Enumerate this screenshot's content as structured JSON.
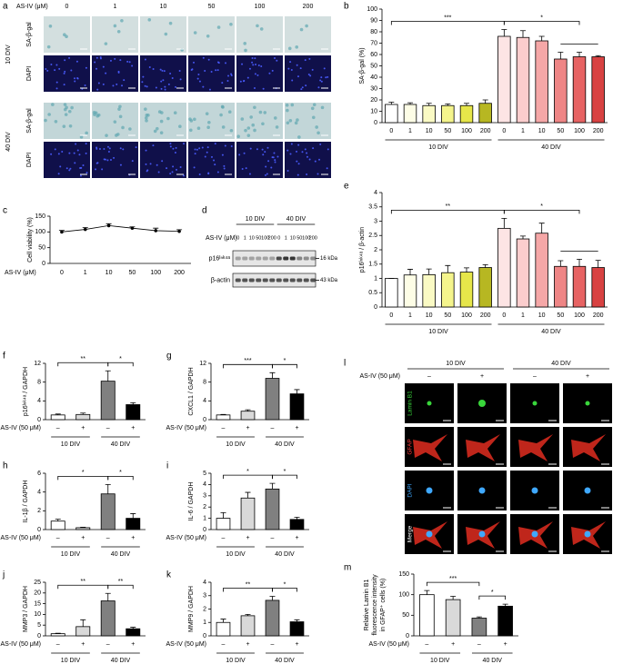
{
  "figure": {
    "a": {
      "letter": "a",
      "treatment": "AS-IV (μM)",
      "doses": [
        "0",
        "1",
        "10",
        "50",
        "100",
        "200"
      ],
      "groups": [
        "10 DIV",
        "40 DIV"
      ],
      "stains": [
        "SA-β-gal",
        "DAPI"
      ]
    },
    "d": {
      "letter": "d",
      "treatment": "AS-IV (μM)",
      "doses": [
        "0",
        "1",
        "10",
        "50",
        "100",
        "200"
      ],
      "groups": [
        "10 DIV",
        "40 DIV"
      ],
      "bands": [
        "p16ᴵⁿᵏ⁴ᵃ",
        "β-actin"
      ],
      "sizes": [
        "16 kDa",
        "43 kDa"
      ]
    },
    "l": {
      "letter": "l",
      "treatment": "AS-IV (50 μM)",
      "conditions": [
        "–",
        "+",
        "–",
        "+"
      ],
      "groups": [
        "10 DIV",
        "40 DIV"
      ],
      "stains": [
        "Lamin B1",
        "GFAP",
        "DAPI",
        "Merge"
      ]
    }
  },
  "chart_data": [
    {
      "type": "bar",
      "panel": "b",
      "ylabel": "SA-β-gal (%)",
      "categories": [
        "0",
        "1",
        "10",
        "50",
        "100",
        "200",
        "0",
        "1",
        "10",
        "50",
        "100",
        "200"
      ],
      "groups": [
        "10 DIV",
        "40 DIV"
      ],
      "values": [
        16,
        16,
        15,
        15,
        15,
        17,
        76,
        75,
        72,
        56,
        58,
        58
      ],
      "errors": [
        2,
        1.5,
        2,
        1.5,
        2,
        3,
        6,
        6,
        4,
        6,
        4,
        1
      ],
      "colors": [
        "#ffffff",
        "#fdfde6",
        "#fafac4",
        "#f4f48c",
        "#e6e64a",
        "#b7b722",
        "#fde4e4",
        "#fbcdcd",
        "#f5a7a7",
        "#ee8585",
        "#e76363",
        "#d84242"
      ],
      "ylim": [
        0,
        100
      ],
      "yticks": [
        0,
        10,
        20,
        30,
        40,
        50,
        60,
        70,
        80,
        90,
        100
      ],
      "annotations": [
        "***",
        "*"
      ]
    },
    {
      "type": "line",
      "panel": "c",
      "ylabel": "Cell viability (%)",
      "xlabel": "AS-IV (μM)",
      "categories": [
        "0",
        "1",
        "10",
        "50",
        "100",
        "200"
      ],
      "values": [
        100,
        108,
        120,
        112,
        104,
        102
      ],
      "errors": [
        5,
        6,
        6,
        4,
        8,
        5
      ],
      "color": "#000000",
      "ylim": [
        0,
        150
      ],
      "yticks": [
        0,
        50,
        100,
        150
      ]
    },
    {
      "type": "bar",
      "panel": "e",
      "ylabel": "p16ᴵⁿᵏ⁴ᵃ / β-actin",
      "categories": [
        "0",
        "1",
        "10",
        "50",
        "100",
        "200",
        "0",
        "1",
        "10",
        "50",
        "100",
        "200"
      ],
      "groups": [
        "10 DIV",
        "40 DIV"
      ],
      "values": [
        1,
        1.12,
        1.13,
        1.2,
        1.22,
        1.38,
        2.75,
        2.38,
        2.58,
        1.42,
        1.42,
        1.38
      ],
      "errors": [
        0,
        0.2,
        0.2,
        0.25,
        0.15,
        0.1,
        0.35,
        0.1,
        0.35,
        0.2,
        0.25,
        0.25
      ],
      "colors": [
        "#ffffff",
        "#fdfde6",
        "#fafac4",
        "#f4f48c",
        "#e6e64a",
        "#b7b722",
        "#fde4e4",
        "#fbcdcd",
        "#f5a7a7",
        "#ee8585",
        "#e76363",
        "#d84242"
      ],
      "ylim": [
        0,
        4
      ],
      "yticks": [
        0,
        0.5,
        1,
        1.5,
        2,
        2.5,
        3,
        3.5,
        4
      ],
      "annotations": [
        "**",
        "*"
      ]
    },
    {
      "type": "bar",
      "panel": "f",
      "ylabel": "p16ᴵⁿᵏ⁴ᵃ / GAPDH",
      "treatment": "AS-IV (50 μM)",
      "categories": [
        "–",
        "+",
        "–",
        "+"
      ],
      "groups": [
        "10 DIV",
        "40 DIV"
      ],
      "values": [
        1,
        1.1,
        8.2,
        3.2
      ],
      "errors": [
        0.2,
        0.3,
        2.2,
        0.4
      ],
      "colors": [
        "#ffffff",
        "#d9d9d9",
        "#808080",
        "#000000"
      ],
      "ylim": [
        0,
        12
      ],
      "yticks": [
        0,
        4,
        8,
        12
      ],
      "annotations": [
        "**",
        "*"
      ]
    },
    {
      "type": "bar",
      "panel": "g",
      "ylabel": "CXCL1 / GAPDH",
      "treatment": "AS-IV (50 μM)",
      "categories": [
        "–",
        "+",
        "–",
        "+"
      ],
      "groups": [
        "10 DIV",
        "40 DIV"
      ],
      "values": [
        1,
        1.8,
        8.8,
        5.5
      ],
      "errors": [
        0.1,
        0.3,
        1.2,
        0.9
      ],
      "colors": [
        "#ffffff",
        "#d9d9d9",
        "#808080",
        "#000000"
      ],
      "ylim": [
        0,
        12
      ],
      "yticks": [
        0,
        4,
        8,
        12
      ],
      "annotations": [
        "***",
        "*"
      ]
    },
    {
      "type": "bar",
      "panel": "h",
      "ylabel": "IL-1β / GAPDH",
      "treatment": "AS-IV (50 μM)",
      "categories": [
        "–",
        "+",
        "–",
        "+"
      ],
      "groups": [
        "10 DIV",
        "40 DIV"
      ],
      "values": [
        0.9,
        0.2,
        3.8,
        1.2
      ],
      "errors": [
        0.2,
        0.05,
        1,
        0.5
      ],
      "colors": [
        "#ffffff",
        "#d9d9d9",
        "#808080",
        "#000000"
      ],
      "ylim": [
        0,
        6
      ],
      "yticks": [
        0,
        2,
        4,
        6
      ],
      "annotations": [
        "*",
        "*"
      ]
    },
    {
      "type": "bar",
      "panel": "i",
      "ylabel": "IL-6 / GAPDH",
      "treatment": "AS-IV (50 μM)",
      "categories": [
        "–",
        "+",
        "–",
        "+"
      ],
      "groups": [
        "10 DIV",
        "40 DIV"
      ],
      "values": [
        1,
        2.8,
        3.6,
        0.9
      ],
      "errors": [
        0.5,
        0.5,
        0.5,
        0.2
      ],
      "colors": [
        "#ffffff",
        "#d9d9d9",
        "#808080",
        "#000000"
      ],
      "ylim": [
        0,
        5
      ],
      "yticks": [
        0,
        1,
        2,
        3,
        4,
        5
      ],
      "annotations": [
        "*",
        "*"
      ]
    },
    {
      "type": "bar",
      "panel": "j",
      "ylabel": "MMP3 / GAPDH",
      "treatment": "AS-IV (50 μM)",
      "categories": [
        "–",
        "+",
        "–",
        "+"
      ],
      "groups": [
        "10 DIV",
        "40 DIV"
      ],
      "values": [
        1,
        4.3,
        16.3,
        3.3
      ],
      "errors": [
        0.2,
        3.2,
        3.5,
        0.7
      ],
      "colors": [
        "#ffffff",
        "#d9d9d9",
        "#808080",
        "#000000"
      ],
      "ylim": [
        0,
        25
      ],
      "yticks": [
        0,
        5,
        10,
        15,
        20,
        25
      ],
      "annotations": [
        "**",
        "**"
      ]
    },
    {
      "type": "bar",
      "panel": "k",
      "ylabel": "MMP9 / GAPDH",
      "treatment": "AS-IV (50 μM)",
      "categories": [
        "–",
        "+",
        "–",
        "+"
      ],
      "groups": [
        "10 DIV",
        "40 DIV"
      ],
      "values": [
        1,
        1.5,
        2.65,
        1.05
      ],
      "errors": [
        0.25,
        0.1,
        0.3,
        0.15
      ],
      "colors": [
        "#ffffff",
        "#d9d9d9",
        "#808080",
        "#000000"
      ],
      "ylim": [
        0,
        4
      ],
      "yticks": [
        0,
        1,
        2,
        3,
        4
      ],
      "annotations": [
        "**",
        "*"
      ]
    },
    {
      "type": "bar",
      "panel": "m",
      "ylabel": [
        "Relative Lamin B1",
        "fluorescence intensity",
        "in GFAP⁺ cells (%)"
      ],
      "treatment": "AS-IV (50 μM)",
      "categories": [
        "–",
        "+",
        "–",
        "+"
      ],
      "groups": [
        "10 DIV",
        "40 DIV"
      ],
      "values": [
        100,
        88,
        43,
        72
      ],
      "errors": [
        10,
        8,
        3,
        5
      ],
      "colors": [
        "#ffffff",
        "#d9d9d9",
        "#808080",
        "#000000"
      ],
      "ylim": [
        0,
        150
      ],
      "yticks": [
        0,
        50,
        100,
        150
      ],
      "annotations": [
        "***",
        "*"
      ]
    }
  ]
}
